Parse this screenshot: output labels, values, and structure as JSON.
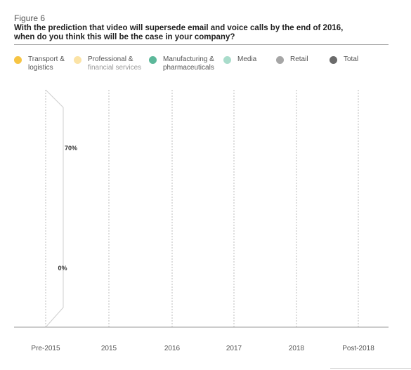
{
  "figure_label": "Figure 6",
  "title_line1": "With the prediction that video will supersede email and voice calls by the end of 2016,",
  "title_line2": "when do you think this will be the case in your company?",
  "legend": [
    {
      "line1": "Transport &",
      "line2": "logistics",
      "color": "#f6c443"
    },
    {
      "line1": "Professional &",
      "line2": "financial services",
      "color": "#fbe3a6"
    },
    {
      "line1": "Manufacturing &",
      "line2": "pharmaceuticals",
      "color": "#5cb89a"
    },
    {
      "line1": "Media",
      "line2": "",
      "color": "#a9dccb"
    },
    {
      "line1": "Retail",
      "line2": "",
      "color": "#a6a6a6"
    },
    {
      "line1": "Total",
      "line2": "",
      "color": "#6b6b6b"
    }
  ],
  "chart_data": {
    "type": "area",
    "categories": [
      "Pre-2015",
      "2015",
      "2016",
      "2017",
      "2018",
      "Post-2018"
    ],
    "series": [
      {
        "name": "Transport & logistics",
        "values": [
          70,
          0,
          0,
          0,
          0,
          0
        ],
        "labels": [
          "70%",
          "0%"
        ]
      }
    ],
    "data_labels": [
      "70%",
      "0%"
    ],
    "grid": "vertical dotted lines",
    "legend_position": "top"
  }
}
